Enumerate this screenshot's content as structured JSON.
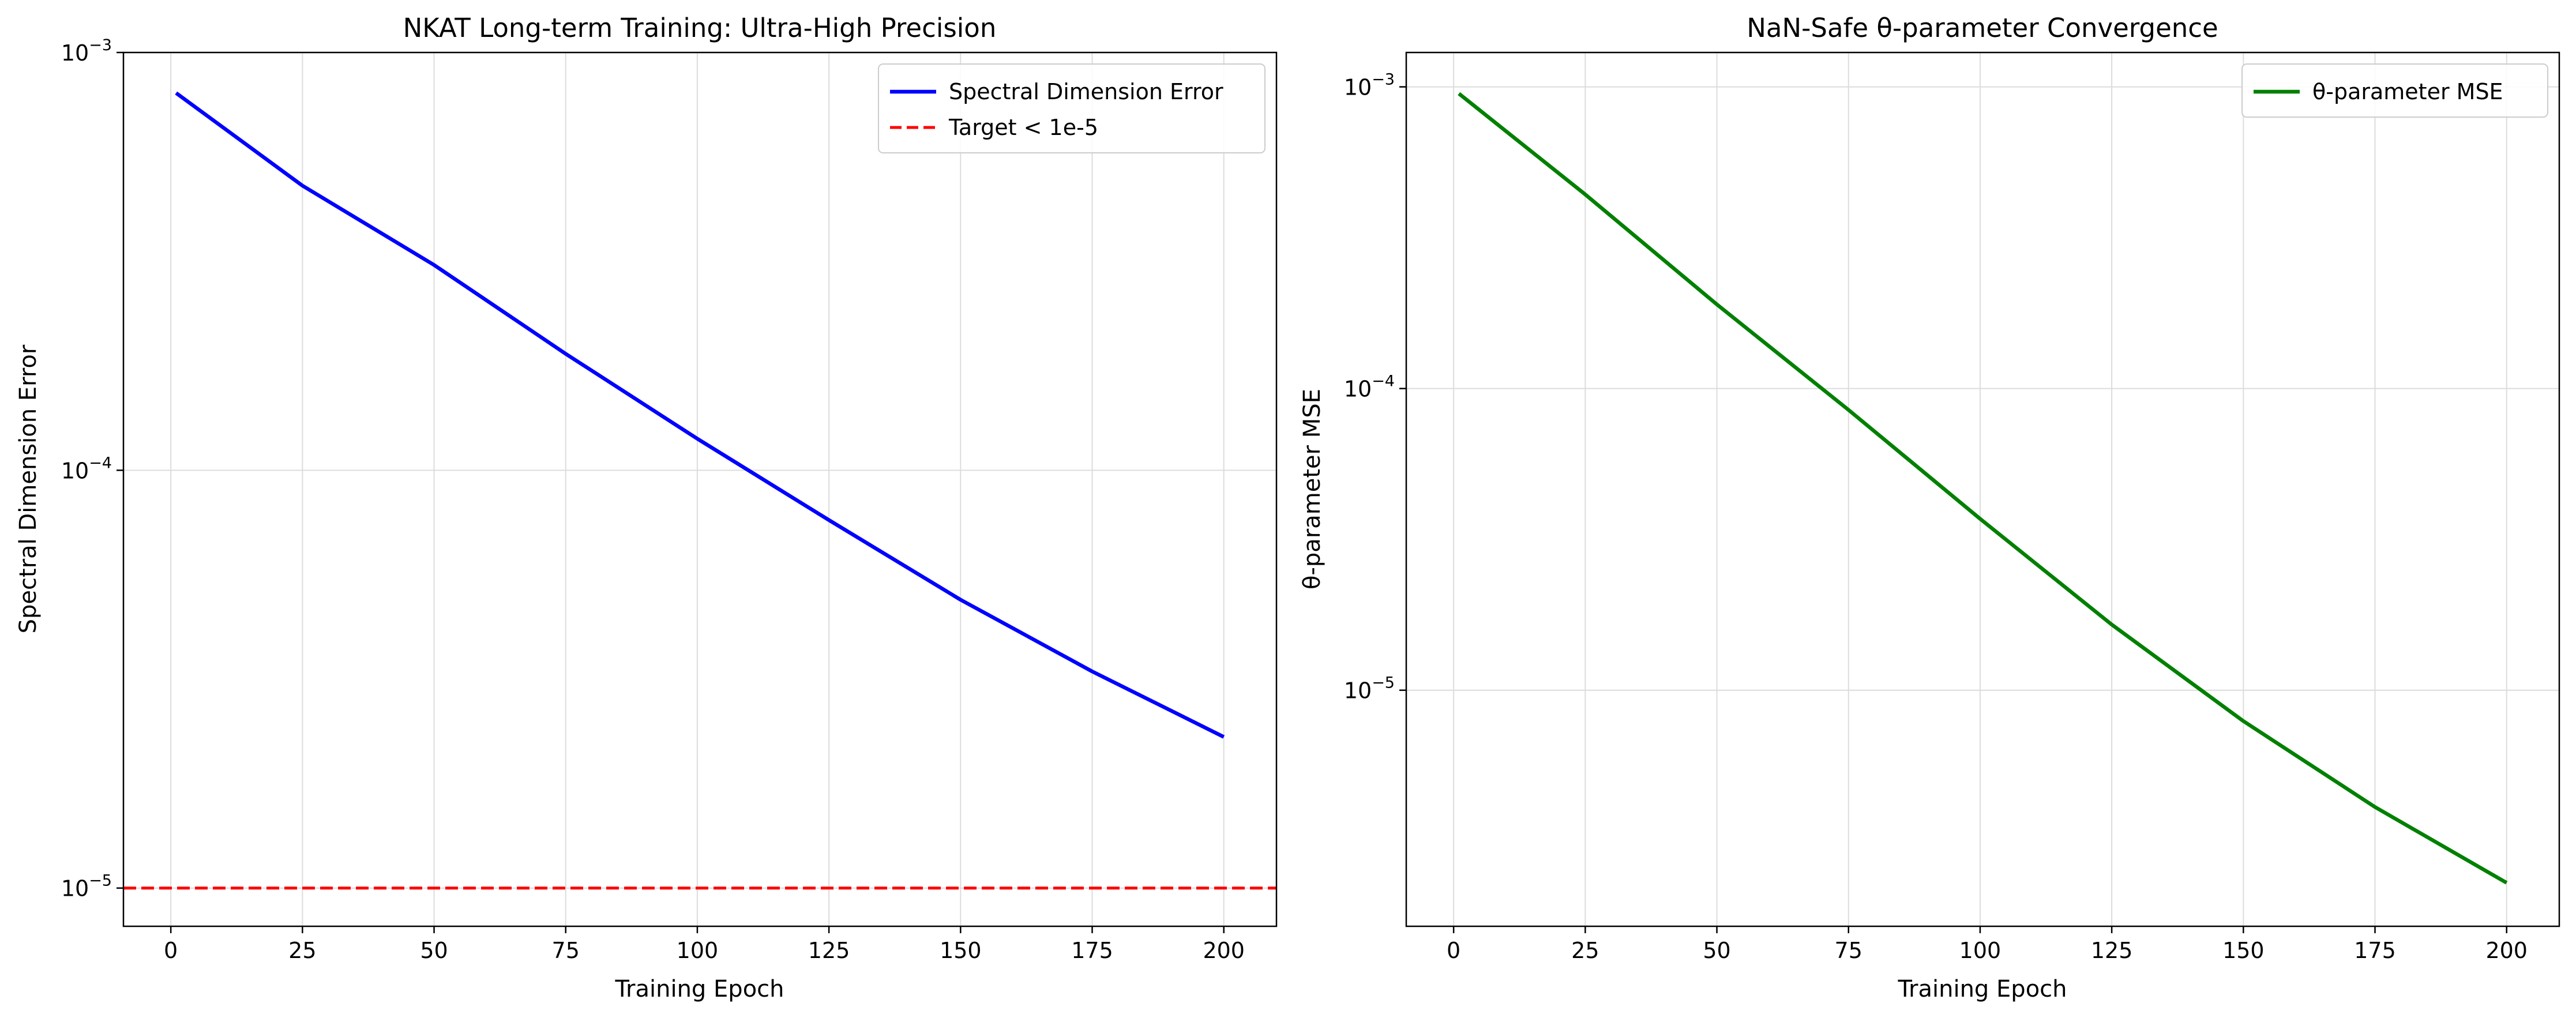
{
  "chart_data": [
    {
      "type": "line",
      "title": "NKAT Long-term Training: Ultra-High Precision",
      "xlabel": "Training Epoch",
      "ylabel": "Spectral Dimension Error",
      "xlim": [
        -9,
        210
      ],
      "ylim": [
        8.1e-06,
        0.001
      ],
      "yscale": "log",
      "grid": true,
      "legend_position": "top-right",
      "x_ticks": [
        {
          "value": 0,
          "label": "0"
        },
        {
          "value": 25,
          "label": "25"
        },
        {
          "value": 50,
          "label": "50"
        },
        {
          "value": 75,
          "label": "75"
        },
        {
          "value": 100,
          "label": "100"
        },
        {
          "value": 125,
          "label": "125"
        },
        {
          "value": 150,
          "label": "150"
        },
        {
          "value": 175,
          "label": "175"
        },
        {
          "value": 200,
          "label": "200"
        }
      ],
      "y_ticks": [
        {
          "value": 1e-05,
          "base": "10",
          "exp": "−5"
        },
        {
          "value": 0.0001,
          "base": "10",
          "exp": "−4"
        },
        {
          "value": 0.001,
          "base": "10",
          "exp": "−3"
        }
      ],
      "series": [
        {
          "name": "Spectral Dimension Error",
          "color": "#0000ff",
          "style": "solid",
          "x": [
            1,
            25,
            50,
            75,
            100,
            125,
            150,
            175,
            200
          ],
          "y": [
            0.0008,
            0.00048,
            0.00031,
            0.00019,
            0.000119,
            7.6e-05,
            4.9e-05,
            3.3e-05,
            2.3e-05
          ]
        },
        {
          "name": "Target < 1e-5",
          "color": "#ff0000",
          "style": "dashed",
          "x": [
            -9,
            210
          ],
          "y": [
            1e-05,
            1e-05
          ]
        }
      ]
    },
    {
      "type": "line",
      "title": "NaN-Safe θ-parameter Convergence",
      "xlabel": "Training Epoch",
      "ylabel": "θ-parameter MSE",
      "xlim": [
        -9,
        210
      ],
      "ylim": [
        1.65e-06,
        0.0013
      ],
      "yscale": "log",
      "grid": true,
      "legend_position": "top-right",
      "x_ticks": [
        {
          "value": 0,
          "label": "0"
        },
        {
          "value": 25,
          "label": "25"
        },
        {
          "value": 50,
          "label": "50"
        },
        {
          "value": 75,
          "label": "75"
        },
        {
          "value": 100,
          "label": "100"
        },
        {
          "value": 125,
          "label": "125"
        },
        {
          "value": 150,
          "label": "150"
        },
        {
          "value": 175,
          "label": "175"
        },
        {
          "value": 200,
          "label": "200"
        }
      ],
      "y_ticks": [
        {
          "value": 1e-05,
          "base": "10",
          "exp": "−5"
        },
        {
          "value": 0.0001,
          "base": "10",
          "exp": "−4"
        },
        {
          "value": 0.001,
          "base": "10",
          "exp": "−3"
        }
      ],
      "series": [
        {
          "name": "θ-parameter MSE",
          "color": "#008000",
          "style": "solid",
          "x": [
            1,
            25,
            50,
            75,
            100,
            125,
            150,
            175,
            200
          ],
          "y": [
            0.00095,
            0.00044,
            0.00019,
            8.5e-05,
            3.7e-05,
            1.65e-05,
            7.9e-06,
            4.1e-06,
            2.3e-06
          ]
        }
      ]
    }
  ]
}
